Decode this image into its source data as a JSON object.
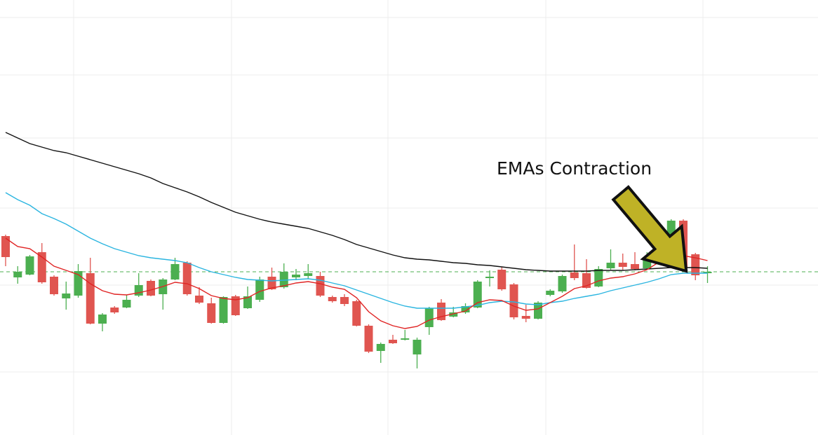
{
  "chart_data": {
    "type": "candlestick",
    "annotation": "EMAs Contraction",
    "categories": [
      null,
      null,
      null,
      null,
      null,
      null,
      null,
      null,
      null,
      null,
      null,
      null,
      null,
      null,
      null,
      null,
      null,
      null,
      null,
      null,
      null,
      null,
      null,
      null,
      null,
      null,
      null,
      null,
      null,
      null,
      null,
      null,
      null,
      null,
      null,
      null,
      null,
      null,
      null,
      null,
      null,
      null,
      null,
      null,
      null,
      null,
      null,
      null,
      null,
      null,
      null,
      null,
      null,
      null,
      null,
      null,
      null,
      null,
      null
    ],
    "open": [
      284,
      225,
      229,
      261,
      226,
      195,
      199,
      231,
      159,
      182,
      182,
      199,
      220,
      201,
      222,
      246,
      199,
      188,
      160,
      198,
      181,
      193,
      226,
      211,
      225,
      227,
      227,
      197,
      197,
      191,
      156,
      120,
      136,
      136,
      115,
      154,
      189,
      169,
      175,
      182,
      224,
      236,
      215,
      170,
      166,
      200,
      205,
      232,
      231,
      212,
      238,
      246,
      244,
      238,
      261,
      266,
      306,
      258,
      231
    ],
    "high": [
      286,
      241,
      257,
      274,
      228,
      219,
      244,
      253,
      174,
      184,
      200,
      231,
      222,
      224,
      253,
      248,
      211,
      196,
      198,
      200,
      212,
      226,
      239,
      245,
      237,
      244,
      233,
      199,
      201,
      193,
      158,
      132,
      143,
      150,
      139,
      183,
      194,
      183,
      188,
      221,
      235,
      240,
      217,
      186,
      191,
      208,
      229,
      272,
      251,
      241,
      265,
      259,
      261,
      261,
      269,
      308,
      308,
      260,
      241
    ],
    "low": [
      241,
      216,
      228,
      216,
      199,
      179,
      196,
      158,
      148,
      173,
      181,
      197,
      198,
      179,
      221,
      199,
      187,
      159,
      159,
      170,
      180,
      190,
      207,
      209,
      221,
      223,
      197,
      189,
      184,
      155,
      117,
      103,
      130,
      135,
      95,
      143,
      163,
      168,
      173,
      181,
      212,
      206,
      165,
      161,
      165,
      198,
      203,
      221,
      209,
      211,
      236,
      236,
      235,
      236,
      251,
      264,
      236,
      221,
      217
    ],
    "close": [
      254,
      233,
      255,
      218,
      201,
      202,
      234,
      159,
      172,
      175,
      193,
      214,
      199,
      222,
      244,
      201,
      189,
      160,
      197,
      171,
      198,
      222,
      208,
      233,
      229,
      231,
      199,
      191,
      187,
      156,
      119,
      130,
      131,
      138,
      136,
      181,
      164,
      175,
      184,
      219,
      226,
      208,
      168,
      166,
      189,
      206,
      227,
      224,
      210,
      237,
      246,
      240,
      237,
      254,
      253,
      306,
      239,
      228,
      233
    ],
    "up_color": "#4caf50",
    "down_color": "#e05550",
    "lines": [
      {
        "color": "#111111",
        "values": [
          432,
          424,
          416,
          411,
          406,
          403,
          398,
          393,
          388,
          383,
          378,
          373,
          367,
          359,
          353,
          347,
          340,
          332,
          325,
          318,
          313,
          308,
          304,
          301,
          298,
          295,
          290,
          285,
          279,
          272,
          267,
          262,
          257,
          253,
          251,
          250,
          248,
          246,
          245,
          243,
          242,
          240,
          238,
          236,
          235,
          234,
          234,
          234,
          234,
          235,
          235,
          235,
          236,
          237,
          238,
          239,
          239,
          239,
          238
        ]
      },
      {
        "color": "#2bb5e0",
        "values": [
          346,
          336,
          328,
          316,
          309,
          301,
          291,
          281,
          273,
          266,
          261,
          256,
          253,
          251,
          249,
          246,
          239,
          233,
          229,
          225,
          222,
          221,
          220,
          221,
          222,
          223,
          221,
          217,
          213,
          207,
          201,
          195,
          189,
          184,
          181,
          181,
          181,
          181,
          183,
          185,
          189,
          191,
          190,
          187,
          186,
          189,
          191,
          195,
          198,
          201,
          206,
          210,
          214,
          218,
          223,
          229,
          231,
          231,
          231
        ]
      },
      {
        "color": "#e02424",
        "values": [
          281,
          269,
          266,
          254,
          241,
          235,
          229,
          216,
          206,
          201,
          200,
          203,
          207,
          212,
          218,
          216,
          209,
          199,
          195,
          193,
          196,
          205,
          210,
          213,
          217,
          219,
          216,
          211,
          208,
          196,
          176,
          163,
          156,
          152,
          155,
          164,
          169,
          173,
          177,
          189,
          193,
          192,
          184,
          178,
          180,
          189,
          198,
          209,
          213,
          220,
          224,
          226,
          230,
          236,
          247,
          256,
          256,
          253,
          249
        ]
      }
    ],
    "price_line": 233,
    "price_line_color": "#4caf50",
    "ylim": [
      0,
      621
    ]
  }
}
